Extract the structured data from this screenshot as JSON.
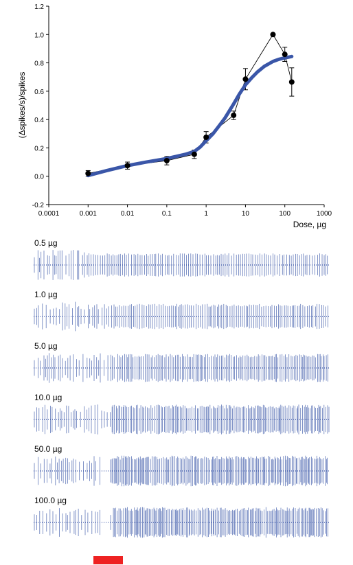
{
  "chart_data": {
    "type": "scatter",
    "xlabel": "Dose, µg",
    "ylabel": "(Δspikes/s)/spikes",
    "xscale": "log",
    "xlim": [
      0.0001,
      1000
    ],
    "ylim": [
      -0.2,
      1.2
    ],
    "x_ticks": [
      "0.0001",
      "0.001",
      "0.01",
      "0.1",
      "1",
      "10",
      "100",
      "1000"
    ],
    "y_ticks": [
      "-0.2",
      "0.0",
      "0.2",
      "0.4",
      "0.6",
      "0.8",
      "1.0",
      "1.2"
    ],
    "grid": false,
    "series": [
      {
        "kind": "points-with-error",
        "color": "#000000",
        "x": [
          0.001,
          0.01,
          0.1,
          0.5,
          1,
          5,
          10,
          50,
          100,
          150
        ],
        "y": [
          0.02,
          0.075,
          0.11,
          0.155,
          0.275,
          0.43,
          0.685,
          1.0,
          0.86,
          0.665
        ],
        "err": [
          0.02,
          0.025,
          0.03,
          0.03,
          0.04,
          0.03,
          0.075,
          0.0,
          0.05,
          0.1
        ]
      },
      {
        "kind": "fit-line",
        "color": "#3a56a8",
        "x": [
          0.001,
          0.003,
          0.01,
          0.03,
          0.1,
          0.3,
          0.5,
          0.7,
          1,
          1.5,
          2,
          3,
          5,
          7,
          10,
          15,
          20,
          30,
          50,
          70,
          100,
          150
        ],
        "y": [
          0.005,
          0.04,
          0.075,
          0.1,
          0.125,
          0.155,
          0.175,
          0.205,
          0.25,
          0.3,
          0.345,
          0.41,
          0.51,
          0.58,
          0.645,
          0.7,
          0.735,
          0.775,
          0.81,
          0.825,
          0.835,
          0.845
        ]
      }
    ]
  },
  "traces": [
    {
      "label": "0.5 µg",
      "onset": 0.18,
      "pre_density": 0.55,
      "post_density": 0.6
    },
    {
      "label": "1.0 µg",
      "onset": 0.26,
      "pre_density": 0.5,
      "post_density": 0.7
    },
    {
      "label": "5.0 µg",
      "onset": 0.28,
      "pre_density": 0.45,
      "post_density": 0.85
    },
    {
      "label": "10.0 µg",
      "onset": 0.26,
      "pre_density": 0.4,
      "post_density": 0.95
    },
    {
      "label": "50.0 µg",
      "onset": 0.26,
      "pre_density": 0.5,
      "post_density": 1.0
    },
    {
      "label": "100.0 µg",
      "onset": 0.26,
      "pre_density": 0.45,
      "post_density": 1.0
    }
  ],
  "colors": {
    "trace": "#3a56a8",
    "fit": "#3a56a8",
    "stimulus_bar": "#ee2222"
  }
}
